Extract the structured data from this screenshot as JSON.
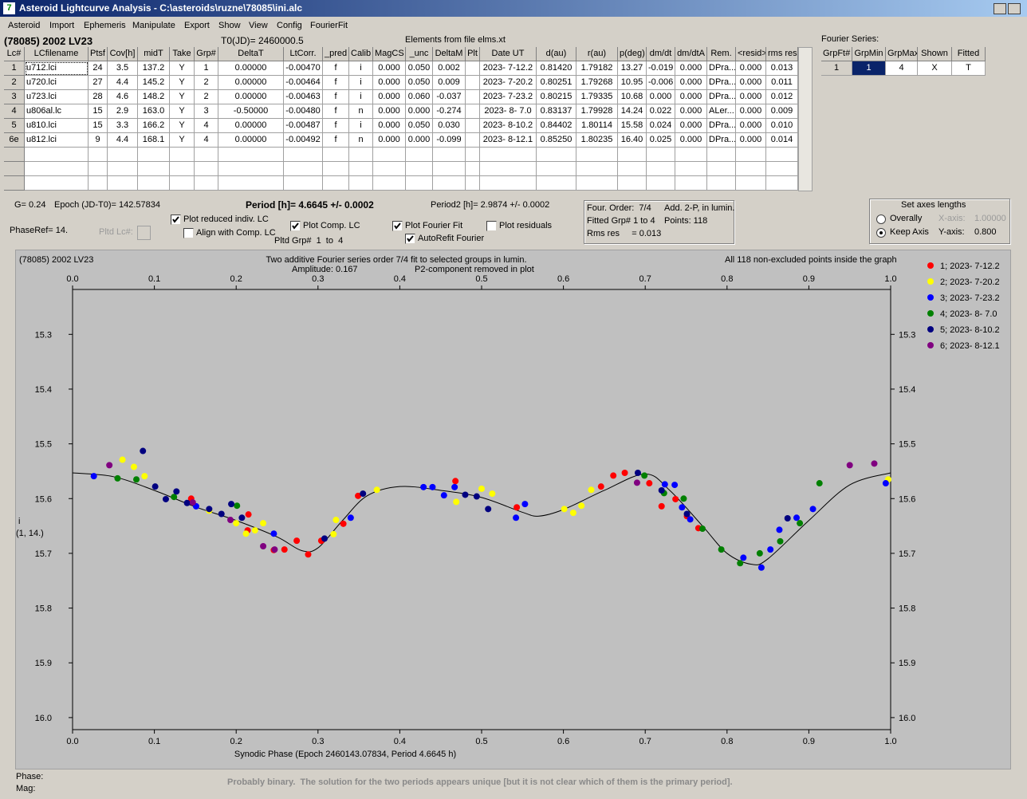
{
  "window": {
    "title": "Asteroid Lightcurve Analysis - C:\\asteroids\\ruzne\\78085\\ini.alc"
  },
  "menu": [
    "Asteroid",
    "Import",
    "Ephemeris",
    "Manipulate",
    "Export",
    "Show",
    "View",
    "Config",
    "FourierFit"
  ],
  "header": {
    "object": "(78085) 2002 LV23",
    "t0": "T0(JD)= 2460000.5",
    "elements": "Elements from file elms.xt"
  },
  "lc_table": {
    "columns": [
      "Lc#",
      "LCfilename",
      "Ptsf",
      "Cov[h]",
      "midT",
      "Take",
      "Grp#",
      "DeltaT",
      "LtCorr.",
      "_pred",
      "Calib",
      "MagCS",
      "_unc",
      "DeltaM",
      "Plt",
      "Date UT",
      "d(au)",
      "r(au)",
      "p(deg)",
      "dm/dt",
      "dm/dtA",
      "Rem.",
      "<resid>",
      "rms res"
    ],
    "rows": [
      [
        "1",
        "u712.lci",
        "24",
        "3.5",
        "137.2",
        "Y",
        "1",
        "0.00000",
        "-0.00470",
        "f",
        "i",
        "0.000",
        "0.050",
        "0.002",
        null,
        "2023- 7-12.2",
        "0.81420",
        "1.79182",
        "13.27",
        "-0.019",
        "0.000",
        "DPra...",
        "0.000",
        "0.013"
      ],
      [
        "2",
        "u720.lci",
        "27",
        "4.4",
        "145.2",
        "Y",
        "2",
        "0.00000",
        "-0.00464",
        "f",
        "i",
        "0.000",
        "0.050",
        "0.009",
        null,
        "2023- 7-20.2",
        "0.80251",
        "1.79268",
        "10.95",
        "-0.006",
        "0.000",
        "DPra...",
        "0.000",
        "0.011"
      ],
      [
        "3",
        "u723.lci",
        "28",
        "4.6",
        "148.2",
        "Y",
        "2",
        "0.00000",
        "-0.00463",
        "f",
        "i",
        "0.000",
        "0.060",
        "-0.037",
        null,
        "2023- 7-23.2",
        "0.80215",
        "1.79335",
        "10.68",
        "0.000",
        "0.000",
        "DPra...",
        "0.000",
        "0.012"
      ],
      [
        "4",
        "u806al.lc",
        "15",
        "2.9",
        "163.0",
        "Y",
        "3",
        "-0.50000",
        "-0.00480",
        "f",
        "n",
        "0.000",
        "0.000",
        "-0.274",
        null,
        "2023- 8- 7.0",
        "0.83137",
        "1.79928",
        "14.24",
        "0.022",
        "0.000",
        "ALer...",
        "0.000",
        "0.009"
      ],
      [
        "5",
        "u810.lci",
        "15",
        "3.3",
        "166.2",
        "Y",
        "4",
        "0.00000",
        "-0.00487",
        "f",
        "i",
        "0.000",
        "0.050",
        "0.030",
        null,
        "2023- 8-10.2",
        "0.84402",
        "1.80114",
        "15.58",
        "0.024",
        "0.000",
        "DPra...",
        "0.000",
        "0.010"
      ],
      [
        "6e",
        "u812.lci",
        "9",
        "4.4",
        "168.1",
        "Y",
        "4",
        "0.00000",
        "-0.00492",
        "f",
        "n",
        "0.000",
        "0.000",
        "-0.099",
        null,
        "2023- 8-12.1",
        "0.85250",
        "1.80235",
        "16.40",
        "0.025",
        "0.000",
        "DPra...",
        "0.000",
        "0.014"
      ]
    ]
  },
  "fourier_table": {
    "caption": "Fourier Series:",
    "columns": [
      "GrpFt#",
      "GrpMin",
      "GrpMax",
      "Shown",
      "Fitted"
    ],
    "rows": [
      [
        "1",
        "1",
        "4",
        "X",
        "T"
      ]
    ]
  },
  "info": {
    "g": "G= 0.24",
    "epoch": "Epoch (JD-T0)= 142.57834",
    "period": "Period [h]= 4.6645 +/- 0.0002",
    "period2": "Period2 [h]= 2.9874 +/- 0.0002",
    "phase_ref": "PhaseRef= 14.",
    "pltd_lc": "Pltd Lc#:",
    "pltd_grp": "Pltd Grp#  1  to  4"
  },
  "checkboxes": [
    {
      "label": "Plot reduced indiv. LC",
      "checked": true
    },
    {
      "label": "Align with Comp. LC",
      "checked": false
    },
    {
      "label": "Plot Comp. LC",
      "checked": true
    },
    {
      "label": "Plot Fourier Fit",
      "checked": true
    },
    {
      "label": "AutoRefit Fourier",
      "checked": true
    },
    {
      "label": "Plot residuals",
      "checked": false
    }
  ],
  "fit_box": [
    "Four. Order:  7/4",
    "Add. 2-P, in lumin.",
    "Fitted Grp# 1 to 4",
    "Points: 118",
    "Rms res     = 0.013"
  ],
  "axes_box": {
    "title": "Set axes lengths",
    "options": [
      {
        "label": "Overally",
        "selected": false
      },
      {
        "label": "Keep Axis",
        "selected": true
      }
    ],
    "x_axis": "X-axis:",
    "x_value": "1.00000",
    "y_axis": "Y-axis:",
    "y_value": "0.800"
  },
  "chart_data": {
    "type": "scatter",
    "title": "(78085) 2002 LV23",
    "annotations": [
      "Two additive Fourier series order 7/4 fit to selected groups in lumin.",
      "Amplitude: 0.167",
      "P2-component removed in plot",
      "All 118 non-excluded points inside the graph"
    ],
    "xlabel": "Synodic Phase (Epoch 2460143.07834, Period 4.6645 h)",
    "ylabel": [
      "i",
      "(1, 14.)"
    ],
    "xlim": [
      0,
      1
    ],
    "ylim": [
      15.218,
      16.022
    ],
    "y_inverted": true,
    "xticks": [
      {
        "value": 0,
        "label": "0.0"
      },
      0.1,
      0.2,
      0.3,
      0.4,
      0.5,
      0.6,
      0.7,
      0.8,
      0.9,
      {
        "value": 1,
        "label": "1.0"
      }
    ],
    "yticks": [
      15.3,
      15.4,
      15.5,
      15.6,
      15.7,
      15.8,
      15.9,
      {
        "value": 16,
        "label": "16.0"
      }
    ],
    "series": [
      {
        "name": "1; 2023- 7-12.2",
        "color": "#ff0000",
        "x": [
          0.145,
          0.215,
          0.214,
          0.246,
          0.259,
          0.274,
          0.288,
          0.304,
          0.331,
          0.349,
          0.468,
          0.543,
          0.646,
          0.661,
          0.675,
          0.705,
          0.72,
          0.737,
          0.751,
          0.765
        ],
        "values": [
          15.6,
          15.629,
          15.658,
          15.694,
          15.693,
          15.677,
          15.702,
          15.677,
          15.646,
          15.595,
          15.568,
          15.616,
          15.578,
          15.558,
          15.553,
          15.572,
          15.614,
          15.601,
          15.632,
          15.654
        ]
      },
      {
        "name": "2; 2023- 7-20.2",
        "color": "#ffff00",
        "x": [
          0.061,
          0.075,
          0.088,
          0.167,
          0.2,
          0.212,
          0.223,
          0.233,
          0.319,
          0.322,
          0.372,
          0.469,
          0.5,
          0.513,
          0.601,
          0.612,
          0.622,
          0.634,
          0.997
        ],
        "values": [
          15.529,
          15.542,
          15.559,
          15.622,
          15.645,
          15.664,
          15.658,
          15.645,
          15.665,
          15.639,
          15.584,
          15.606,
          15.582,
          15.591,
          15.619,
          15.626,
          15.613,
          15.584,
          15.565
        ]
      },
      {
        "name": "3; 2023- 7-23.2",
        "color": "#0000ff",
        "x": [
          0.026,
          0.151,
          0.246,
          0.34,
          0.429,
          0.44,
          0.454,
          0.467,
          0.542,
          0.553,
          0.724,
          0.736,
          0.745,
          0.755,
          0.82,
          0.842,
          0.853,
          0.864,
          0.885,
          0.905,
          0.994
        ],
        "values": [
          15.559,
          15.614,
          15.664,
          15.635,
          15.579,
          15.579,
          15.594,
          15.579,
          15.635,
          15.61,
          15.574,
          15.575,
          15.616,
          15.638,
          15.708,
          15.726,
          15.693,
          15.657,
          15.635,
          15.619,
          15.572
        ]
      },
      {
        "name": "4; 2023- 8- 7.0",
        "color": "#008000",
        "x": [
          0.055,
          0.078,
          0.124,
          0.201,
          0.699,
          0.723,
          0.747,
          0.77,
          0.793,
          0.816,
          0.84,
          0.865,
          0.889,
          0.913
        ],
        "values": [
          15.563,
          15.565,
          15.597,
          15.613,
          15.558,
          15.59,
          15.6,
          15.655,
          15.693,
          15.718,
          15.7,
          15.678,
          15.645,
          15.572
        ]
      },
      {
        "name": "5; 2023- 8-10.2",
        "color": "#000080",
        "x": [
          0.086,
          0.101,
          0.114,
          0.127,
          0.14,
          0.167,
          0.182,
          0.194,
          0.207,
          0.308,
          0.355,
          0.48,
          0.494,
          0.508,
          0.691,
          0.72,
          0.751,
          0.874
        ],
        "values": [
          15.513,
          15.578,
          15.601,
          15.587,
          15.608,
          15.619,
          15.628,
          15.61,
          15.635,
          15.673,
          15.591,
          15.593,
          15.596,
          15.619,
          15.553,
          15.585,
          15.628,
          15.636
        ]
      },
      {
        "name": "6; 2023- 8-12.1",
        "color": "#800080",
        "x": [
          0.045,
          0.147,
          0.193,
          0.233,
          0.247,
          0.69,
          0.95,
          0.98
        ],
        "values": [
          15.539,
          15.607,
          15.639,
          15.687,
          15.693,
          15.571,
          15.539,
          15.536
        ]
      }
    ],
    "fit": {
      "color": "#000000",
      "x": [
        0,
        0.05,
        0.1,
        0.15,
        0.2,
        0.25,
        0.28,
        0.3,
        0.33,
        0.36,
        0.4,
        0.45,
        0.5,
        0.55,
        0.57,
        0.6,
        0.65,
        0.7,
        0.73,
        0.77,
        0.8,
        0.83,
        0.85,
        0.9,
        0.95,
        1
      ],
      "values": [
        15.553,
        15.56,
        15.585,
        15.615,
        15.64,
        15.67,
        15.695,
        15.69,
        15.64,
        15.595,
        15.578,
        15.585,
        15.598,
        15.625,
        15.632,
        15.62,
        15.585,
        15.555,
        15.585,
        15.65,
        15.7,
        15.72,
        15.71,
        15.64,
        15.575,
        15.553
      ]
    }
  },
  "status": {
    "phase": "Phase:",
    "mag": "Mag:",
    "message": "Probably binary.  The solution for the two periods appears unique [but it is not clear which of them is the primary period]."
  }
}
